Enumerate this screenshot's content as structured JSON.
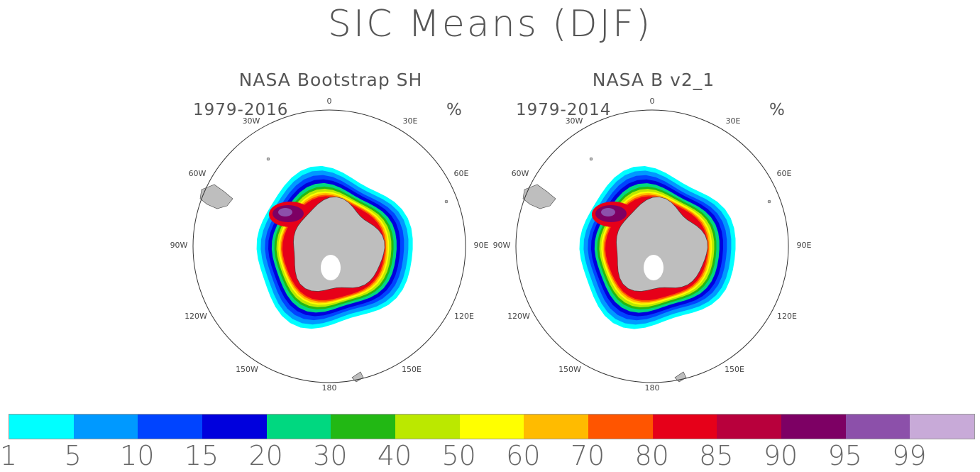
{
  "title": "SIC Means (DJF)",
  "unit": "%",
  "panels": [
    {
      "title": "NASA Bootstrap SH",
      "period": "1979-2016"
    },
    {
      "title": "NASA B v2_1",
      "period": "1979-2014"
    }
  ],
  "longitude_labels": {
    "top": "0",
    "r30e": "30E",
    "r60e": "60E",
    "r90e": "90E",
    "r120e": "120E",
    "r150e": "150E",
    "bottom": "180",
    "l150w": "150W",
    "l120w": "120W",
    "l90w": "90W",
    "l60w": "60W",
    "l30w": "30W"
  },
  "colorbar": {
    "colors": [
      "#00ffff",
      "#0099ff",
      "#0044ff",
      "#0000dd",
      "#00d880",
      "#22b814",
      "#bbe800",
      "#ffff00",
      "#ffbb00",
      "#ff5500",
      "#e60019",
      "#b8003c",
      "#7d0064",
      "#8c50aa",
      "#c8aad8"
    ],
    "ticks": [
      "1",
      "5",
      "10",
      "15",
      "20",
      "30",
      "40",
      "50",
      "60",
      "70",
      "80",
      "85",
      "90",
      "95",
      "99"
    ]
  },
  "colors": {
    "land": "#bebebe",
    "coast": "#444444"
  }
}
